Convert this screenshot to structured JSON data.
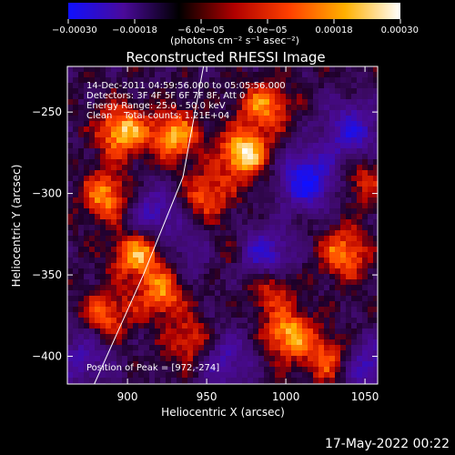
{
  "chart_data": {
    "type": "heatmap",
    "title": "Reconstructed RHESSI Image",
    "xlabel": "Heliocentric X (arcsec)",
    "ylabel": "Heliocentric Y (arcsec)",
    "xlim": [
      862,
      1058
    ],
    "ylim": [
      -417,
      -222
    ],
    "x_ticks": [
      900,
      950,
      1000,
      1050
    ],
    "x_tick_labels": [
      "900",
      "950",
      "1000",
      "1050"
    ],
    "y_ticks": [
      -250,
      -300,
      -350,
      -400
    ],
    "y_tick_labels": [
      "−250",
      "−300",
      "−350",
      "−400"
    ],
    "colorbar": {
      "range": [
        -0.0003,
        0.0003
      ],
      "ticks": [
        -0.0003,
        -0.00018,
        -6e-05,
        6e-05,
        0.00018,
        0.0003
      ],
      "tick_labels": [
        "−0.00030",
        "−0.00018",
        "−6.0e−05",
        "6.0e−05",
        "0.00018",
        "0.00030"
      ],
      "units": "(photons cm⁻² s⁻¹ asec⁻²)",
      "colors": [
        "#1010ff",
        "#4a0a9a",
        "#000000",
        "#b00000",
        "#ff4000",
        "#ffb000",
        "#ffffff"
      ]
    },
    "annotations": [
      "14-Dec-2011 04:59:56.000 to 05:05:56.000",
      "Detectors: 3F 4F 5F 6F 7F 8F, Att 0",
      "Energy Range: 25.0 - 50.0 keV",
      "Clean    Total counts: 1.21E+04"
    ],
    "peak_label": "Position of Peak = [972,-274]",
    "peak": [
      972,
      -274
    ],
    "limb_line": [
      [
        879,
        -417
      ],
      [
        910,
        -350
      ],
      [
        935,
        -290
      ],
      [
        948,
        -222
      ]
    ],
    "bright_regions": [
      {
        "x": 895,
        "y": -260,
        "level": 0.9
      },
      {
        "x": 885,
        "y": -300,
        "level": 0.75
      },
      {
        "x": 928,
        "y": -263,
        "level": 0.8
      },
      {
        "x": 972,
        "y": -274,
        "level": 1.0
      },
      {
        "x": 985,
        "y": -245,
        "level": 0.7
      },
      {
        "x": 948,
        "y": -300,
        "level": 0.6
      },
      {
        "x": 905,
        "y": -335,
        "level": 0.85
      },
      {
        "x": 920,
        "y": -360,
        "level": 0.7
      },
      {
        "x": 885,
        "y": -372,
        "level": 0.6
      },
      {
        "x": 938,
        "y": -390,
        "level": 0.55
      },
      {
        "x": 1000,
        "y": -385,
        "level": 0.8
      },
      {
        "x": 988,
        "y": -355,
        "level": 0.65
      },
      {
        "x": 1035,
        "y": -335,
        "level": 0.7
      },
      {
        "x": 1048,
        "y": -290,
        "level": 0.45
      },
      {
        "x": 1025,
        "y": -400,
        "level": 0.6
      },
      {
        "x": 958,
        "y": -335,
        "level": 0.45
      }
    ],
    "dark_regions": [
      {
        "x": 1012,
        "y": -290,
        "level": 0.9
      },
      {
        "x": 1040,
        "y": -260,
        "level": 0.7
      },
      {
        "x": 985,
        "y": -338,
        "level": 0.8
      },
      {
        "x": 915,
        "y": -312,
        "level": 0.6
      },
      {
        "x": 1050,
        "y": -405,
        "level": 0.6
      },
      {
        "x": 960,
        "y": -400,
        "level": 0.55
      },
      {
        "x": 945,
        "y": -335,
        "level": 0.45
      },
      {
        "x": 870,
        "y": -400,
        "level": 0.5
      }
    ]
  },
  "footer": {
    "date_stamp": "17-May-2022 00:22"
  }
}
